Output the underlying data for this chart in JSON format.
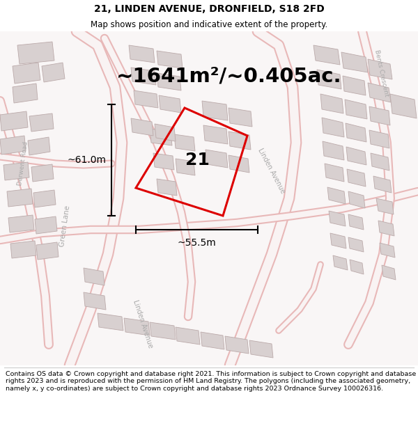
{
  "title": "21, LINDEN AVENUE, DRONFIELD, S18 2FD",
  "subtitle": "Map shows position and indicative extent of the property.",
  "area_text": "~1641m²/~0.405ac.",
  "label_21": "21",
  "dim_height": "~61.0m",
  "dim_width": "~55.5m",
  "footer": "Contains OS data © Crown copyright and database right 2021. This information is subject to Crown copyright and database rights 2023 and is reproduced with the permission of HM Land Registry. The polygons (including the associated geometry, namely x, y co-ordinates) are subject to Crown copyright and database rights 2023 Ordnance Survey 100026316.",
  "bg_color": "#ffffff",
  "map_bg": "#f9f6f6",
  "road_outline_color": "#e8b8b8",
  "road_fill_color": "#f9f3f3",
  "building_fill": "#d8d0d0",
  "building_edge": "#bbaaaa",
  "red_line_color": "#dd0000",
  "dim_line_color": "#111111",
  "street_label_color": "#aaaaaa",
  "title_fontsize": 10,
  "subtitle_fontsize": 8.5,
  "area_fontsize": 21,
  "label_fontsize": 18,
  "dim_fontsize": 10,
  "footer_fontsize": 6.8,
  "figsize": [
    6.0,
    6.25
  ],
  "dpi": 100
}
